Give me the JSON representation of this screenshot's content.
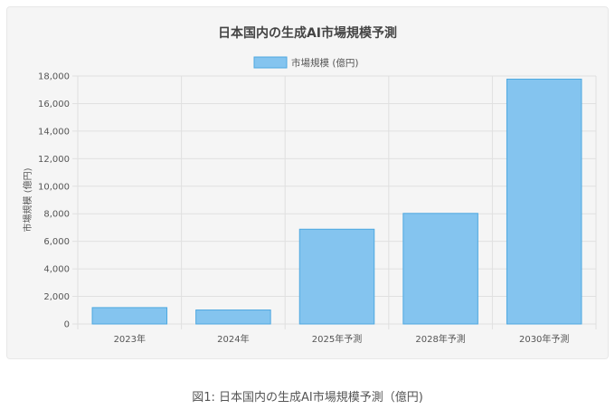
{
  "caption": "図1: 日本国内の生成AI市場規模予測（億円)",
  "colors": {
    "bar_fill": "#84c4ef",
    "bar_stroke": "#4ea8e0",
    "grid": "#e0e0e0",
    "text": "#555555",
    "title": "#444444"
  },
  "chart_data": {
    "type": "bar",
    "title": "日本国内の生成AI市場規模予測",
    "xlabel": "",
    "ylabel": "市場規模 (億円)",
    "legend_position": "top",
    "grid": true,
    "categories": [
      "2023年",
      "2024年",
      "2025年予測",
      "2028年予測",
      "2030年予測"
    ],
    "series": [
      {
        "name": "市場規模 (億円)",
        "values": [
          1188,
          1016,
          6879,
          8028,
          17774
        ]
      }
    ],
    "ylim": [
      0,
      18000
    ],
    "yticks": [
      0,
      2000,
      4000,
      6000,
      8000,
      10000,
      12000,
      14000,
      16000,
      18000
    ],
    "ytick_labels": [
      "0",
      "2,000",
      "4,000",
      "6,000",
      "8,000",
      "10,000",
      "12,000",
      "14,000",
      "16,000",
      "18,000"
    ]
  }
}
